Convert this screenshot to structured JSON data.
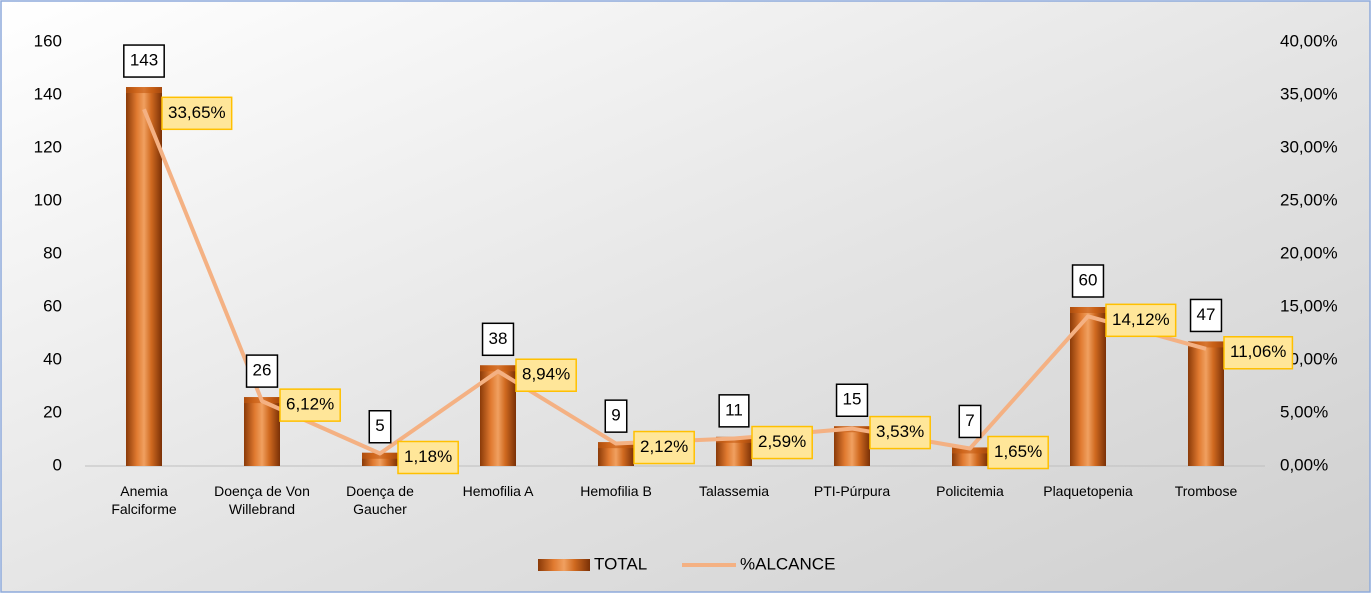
{
  "chart_data": {
    "type": "bar",
    "categories": [
      "Anemia Falciforme",
      "Doença de Von Willebrand",
      "Doença de Gaucher",
      "Hemofilia A",
      "Hemofilia B",
      "Talassemia",
      "PTI-Púrpura",
      "Policitemia",
      "Plaquetopenia",
      "Trombose"
    ],
    "series": [
      {
        "name": "TOTAL",
        "type": "bar",
        "color": "#c55a11",
        "values": [
          143,
          26,
          5,
          38,
          9,
          11,
          15,
          7,
          60,
          47
        ]
      },
      {
        "name": "%ALCANCE",
        "type": "line",
        "axis": "y2",
        "color": "#f4b183",
        "values": [
          33.65,
          6.12,
          1.18,
          8.94,
          2.12,
          2.59,
          3.53,
          1.65,
          14.12,
          11.06
        ],
        "value_labels": [
          "33,65%",
          "6,12%",
          "1,18%",
          "8,94%",
          "2,12%",
          "2,59%",
          "3,53%",
          "1,65%",
          "14,12%",
          "11,06%"
        ]
      }
    ],
    "ylim": [
      0,
      160
    ],
    "yticks": [
      0,
      20,
      40,
      60,
      80,
      100,
      120,
      140,
      160
    ],
    "y2lim": [
      0,
      40
    ],
    "y2ticks": [
      {
        "value": 0,
        "label": "0,00%"
      },
      {
        "value": 5,
        "label": "5,00%"
      },
      {
        "value": 10,
        "label": "10,00%"
      },
      {
        "value": 15,
        "label": "15,00%"
      },
      {
        "value": 20,
        "label": "20,00%"
      },
      {
        "value": 25,
        "label": "25,00%"
      },
      {
        "value": 30,
        "label": "30,00%"
      },
      {
        "value": 35,
        "label": "35,00%"
      },
      {
        "value": 40,
        "label": "40,00%"
      }
    ],
    "legend": "bottom"
  }
}
